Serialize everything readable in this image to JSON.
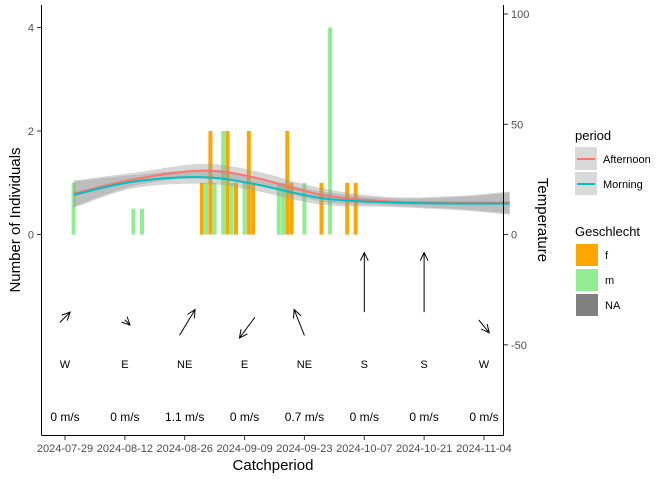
{
  "chart_data": {
    "type": "bar",
    "xlabel": "Catchperiod",
    "ylabel": "Number of Individuals",
    "y2label": "Temperature",
    "x_ticks": [
      "2024-07-29",
      "2024-08-12",
      "2024-08-26",
      "2024-09-09",
      "2024-09-23",
      "2024-10-07",
      "2024-10-21",
      "2024-11-04"
    ],
    "y_ticks": [
      0,
      2,
      4
    ],
    "y2_ticks": [
      100,
      50,
      0,
      -50
    ],
    "grid": false,
    "legend_placement": "right",
    "legends": [
      {
        "title": "period",
        "items": [
          {
            "label": "Afternoon",
            "color": "#F8766D"
          },
          {
            "label": "Morning",
            "color": "#00BFC4"
          }
        ]
      },
      {
        "title": "Geschlecht",
        "items": [
          {
            "label": "f",
            "color": "#FFA500"
          },
          {
            "label": "m",
            "color": "#90EE90"
          },
          {
            "label": "NA",
            "color": "#808080"
          }
        ]
      }
    ],
    "bars": [
      {
        "date": "2024-07-31",
        "sex": "m",
        "value": 1
      },
      {
        "date": "2024-08-14",
        "sex": "m",
        "value": 0.5
      },
      {
        "date": "2024-08-16",
        "sex": "m",
        "value": 0.5
      },
      {
        "date": "2024-08-30",
        "sex": "f",
        "value": 1
      },
      {
        "date": "2024-08-31",
        "sex": "m",
        "value": 1
      },
      {
        "date": "2024-09-01",
        "sex": "f",
        "value": 2
      },
      {
        "date": "2024-09-02",
        "sex": "m",
        "value": 1
      },
      {
        "date": "2024-09-04",
        "sex": "m",
        "value": 2
      },
      {
        "date": "2024-09-05",
        "sex": "f",
        "value": 2
      },
      {
        "date": "2024-09-06",
        "sex": "m",
        "value": 1
      },
      {
        "date": "2024-09-07",
        "sex": "f",
        "value": 1
      },
      {
        "date": "2024-09-09",
        "sex": "m",
        "value": 1
      },
      {
        "date": "2024-09-10",
        "sex": "f",
        "value": 2
      },
      {
        "date": "2024-09-11",
        "sex": "f",
        "value": 1
      },
      {
        "date": "2024-09-17",
        "sex": "m",
        "value": 1
      },
      {
        "date": "2024-09-18",
        "sex": "m",
        "value": 1
      },
      {
        "date": "2024-09-19",
        "sex": "f",
        "value": 2
      },
      {
        "date": "2024-09-20",
        "sex": "f",
        "value": 1
      },
      {
        "date": "2024-09-23",
        "sex": "m",
        "value": 1
      },
      {
        "date": "2024-09-27",
        "sex": "f",
        "value": 1
      },
      {
        "date": "2024-09-29",
        "sex": "m",
        "value": 4
      },
      {
        "date": "2024-10-03",
        "sex": "f",
        "value": 1
      },
      {
        "date": "2024-10-05",
        "sex": "f",
        "value": 1
      }
    ],
    "temperature_smooth": {
      "y2_range": [
        -95,
        102
      ],
      "series": [
        {
          "name": "Afternoon",
          "color": "#F8766D",
          "points": [
            [
              "2024-07-31",
              18.5
            ],
            [
              "2024-08-14",
              25
            ],
            [
              "2024-08-30",
              29
            ],
            [
              "2024-09-11",
              26
            ],
            [
              "2024-09-27",
              18
            ],
            [
              "2024-10-13",
              15
            ],
            [
              "2024-10-29",
              14.5
            ],
            [
              "2024-11-10",
              14.5
            ]
          ]
        },
        {
          "name": "Morning",
          "color": "#00BFC4",
          "points": [
            [
              "2024-07-31",
              18
            ],
            [
              "2024-08-14",
              24
            ],
            [
              "2024-08-30",
              26
            ],
            [
              "2024-09-11",
              23
            ],
            [
              "2024-09-27",
              16.5
            ],
            [
              "2024-10-13",
              14.5
            ],
            [
              "2024-10-29",
              14
            ],
            [
              "2024-11-10",
              14
            ]
          ]
        }
      ]
    },
    "wind": [
      {
        "date": "2024-07-29",
        "direction": "W",
        "speed": "0 m/s",
        "arrow": [
          [
            -0.1,
            0.2
          ],
          [
            0.1,
            0
          ]
        ]
      },
      {
        "date": "2024-08-12",
        "direction": "E",
        "speed": "0 m/s",
        "arrow": [
          [
            0,
            0.15
          ],
          [
            0.1,
            0.25
          ]
        ]
      },
      {
        "date": "2024-08-26",
        "direction": "NE",
        "speed": "1.1 m/s",
        "arrow": [
          [
            -0.1,
            0.45
          ],
          [
            0.2,
            -0.05
          ]
        ]
      },
      {
        "date": "2024-09-09",
        "direction": "E",
        "speed": "0 m/s",
        "arrow": [
          [
            0.2,
            0.1
          ],
          [
            -0.1,
            0.5
          ]
        ]
      },
      {
        "date": "2024-09-23",
        "direction": "NE",
        "speed": "0.7 m/s",
        "arrow": [
          [
            0,
            0.45
          ],
          [
            -0.2,
            -0.05
          ]
        ]
      },
      {
        "date": "2024-10-07",
        "direction": "S",
        "speed": "0 m/s",
        "arrow": [
          [
            0,
            0
          ],
          [
            0,
            -1.15
          ]
        ]
      },
      {
        "date": "2024-10-21",
        "direction": "S",
        "speed": "0 m/s",
        "arrow": [
          [
            0,
            0
          ],
          [
            0,
            -1.15
          ]
        ]
      },
      {
        "date": "2024-11-04",
        "direction": "W",
        "speed": "0 m/s",
        "arrow": [
          [
            -0.1,
            0.15
          ],
          [
            0.1,
            0.4
          ]
        ]
      }
    ]
  }
}
